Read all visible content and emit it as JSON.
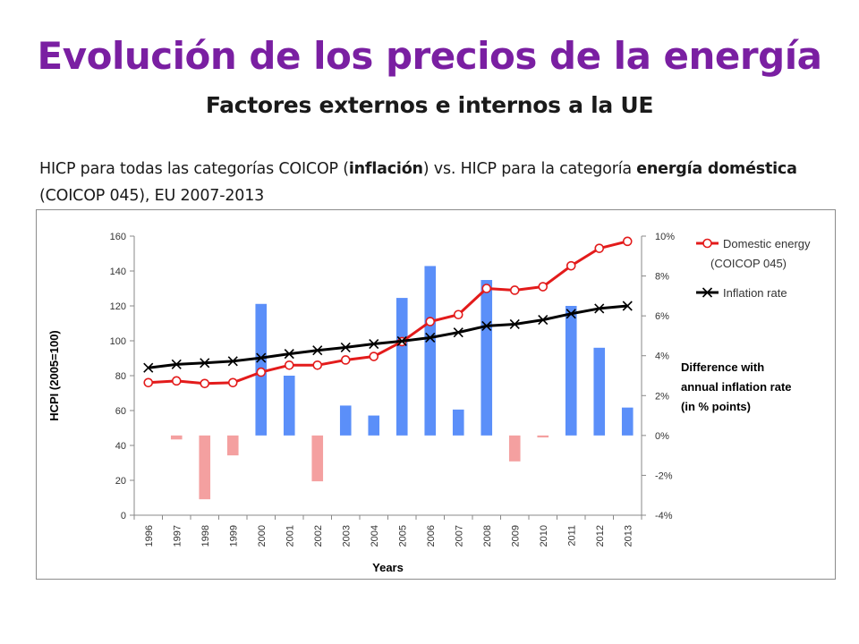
{
  "slide": {
    "title": "Evolución de los precios de la energía",
    "subtitle": "Factores externos e internos a la UE",
    "description": {
      "part1": "HICP  para todas las categorías COICOP (",
      "bold1": "inflación",
      "part2": ") vs. HICP para la categoría ",
      "bold2": "energía doméstica",
      "part3": " (COICOP 045),   EU 2007-2013"
    }
  },
  "colors": {
    "title": "#7a1fa2",
    "domestic_energy_line": "#e31b1b",
    "inflation_line": "#000000",
    "bar_positive": "#5b8ff9",
    "bar_negative": "#f4a0a0"
  },
  "chart_data": {
    "type": "bar",
    "xlabel": "Years",
    "ylabel": "HCPI (2005=100)",
    "ylabel_right": "",
    "categories": [
      "1996",
      "1997",
      "1998",
      "1999",
      "2000",
      "2001",
      "2002",
      "2003",
      "2004",
      "2005",
      "2006",
      "2007",
      "2008",
      "2009",
      "2010",
      "2011",
      "2012",
      "2013"
    ],
    "ylim": [
      0,
      160
    ],
    "yticks": [
      0,
      20,
      40,
      60,
      80,
      100,
      120,
      140,
      160
    ],
    "ylim_right": [
      -4,
      10
    ],
    "yticks_right": [
      "-4%",
      "-2%",
      "0%",
      "2%",
      "4%",
      "6%",
      "8%",
      "10%"
    ],
    "yticks_right_values": [
      -4,
      -2,
      0,
      2,
      4,
      6,
      8,
      10
    ],
    "grid": false,
    "legend_position": "top-right",
    "series": [
      {
        "name": "Domestic energy (COICOP 045)",
        "type": "line",
        "axis": "left",
        "marker": "circle",
        "values": [
          76,
          77,
          75.5,
          76,
          82,
          86,
          86,
          89,
          91,
          99.5,
          111,
          115,
          130,
          129,
          131,
          143,
          153,
          157
        ]
      },
      {
        "name": "Inflation rate",
        "type": "line",
        "axis": "left",
        "marker": "x",
        "values": [
          84.5,
          86.5,
          87.3,
          88.3,
          90.2,
          92.5,
          94.5,
          96.2,
          98.2,
          99.8,
          101.8,
          104.8,
          108.5,
          109.5,
          112,
          115.5,
          118.5,
          120
        ]
      },
      {
        "name": "Difference with annual inflation rate (in % points)",
        "type": "bar",
        "axis": "right",
        "values": [
          null,
          -0.2,
          -3.2,
          -1.0,
          6.6,
          3.0,
          -2.3,
          1.5,
          1.0,
          6.9,
          8.5,
          1.3,
          7.8,
          -1.3,
          -0.1,
          6.5,
          4.4,
          1.4
        ]
      }
    ],
    "legend": [
      {
        "label_line1": "Domestic energy",
        "label_line2": "(COICOP 045)"
      },
      {
        "label_line1": "Inflation rate"
      }
    ],
    "annotation": [
      "Difference with",
      "annual inflation rate",
      "(in % points)"
    ]
  }
}
